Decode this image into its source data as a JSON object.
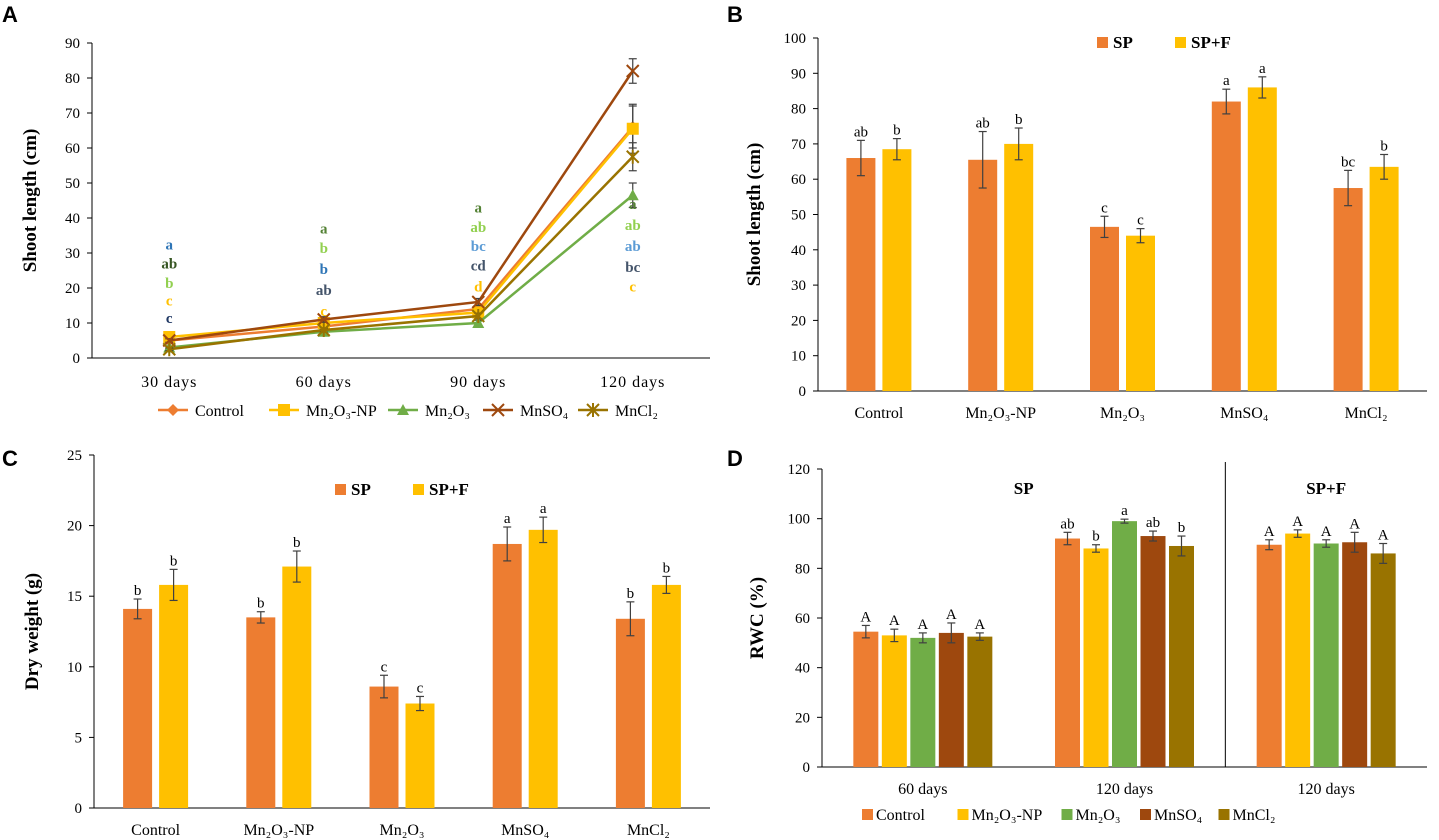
{
  "figure": {
    "colors": {
      "Control": "#ED7D31",
      "Mn2O3-NP": "#FFC000",
      "Mn2O3": "#70AD47",
      "MnSO4": "#9E480E",
      "MnCl2": "#997300",
      "SP": "#ED7D31",
      "SP+F": "#FFC000"
    }
  },
  "chart_data": [
    {
      "panel": "A",
      "type": "line",
      "ylabel": "Shoot length (cm)",
      "ylim": [
        0,
        90
      ],
      "yticks": [
        "0",
        "10",
        "20",
        "30",
        "40",
        "50",
        "60",
        "70",
        "80",
        "90"
      ],
      "categories": [
        "30 days",
        "60 days",
        "90 days",
        "120 days"
      ],
      "series": [
        {
          "key": "Control",
          "name": "Control",
          "color": "#ED7D31",
          "marker": "diamond",
          "values": [
            5,
            9,
            14,
            66
          ],
          "errors": [
            0.5,
            0.8,
            1,
            6
          ]
        },
        {
          "key": "Mn2O3-NP",
          "name": "Mn₂O₃-NP",
          "color": "#FFC000",
          "marker": "square",
          "values": [
            6,
            10,
            13,
            65.5
          ],
          "errors": [
            0.5,
            0.8,
            1,
            7
          ]
        },
        {
          "key": "Mn2O3",
          "name": "Mn₂O₃",
          "color": "#70AD47",
          "marker": "triangle",
          "values": [
            3,
            7.5,
            10,
            46.5
          ],
          "errors": [
            0.4,
            0.6,
            0.8,
            3.5
          ]
        },
        {
          "key": "MnSO4",
          "name": "MnSO₄",
          "color": "#9E480E",
          "marker": "x",
          "values": [
            5,
            11,
            16,
            82
          ],
          "errors": [
            0.5,
            0.8,
            1,
            3.5
          ]
        },
        {
          "key": "MnCl2",
          "name": "MnCl₂",
          "color": "#997300",
          "marker": "star",
          "values": [
            2.5,
            8,
            12,
            57.5
          ],
          "errors": [
            0.4,
            0.6,
            0.8,
            4
          ]
        }
      ],
      "letters": [
        {
          "x": "30 days",
          "items": [
            {
              "text": "a",
              "color": "#2E75B6",
              "y": 32.5
            },
            {
              "text": "ab",
              "color": "#375623",
              "y": 27
            },
            {
              "text": "b",
              "color": "#92D050",
              "y": 21.5
            },
            {
              "text": "c",
              "color": "#FFC000",
              "y": 16.5
            },
            {
              "text": "c",
              "color": "#203864",
              "y": 11.5
            }
          ]
        },
        {
          "x": "60 days",
          "items": [
            {
              "text": "a",
              "color": "#548235",
              "y": 37
            },
            {
              "text": "b",
              "color": "#92D050",
              "y": 31.5
            },
            {
              "text": "b",
              "color": "#2E75B6",
              "y": 25.5
            },
            {
              "text": "ab",
              "color": "#44546A",
              "y": 19.5
            },
            {
              "text": "c",
              "color": "#FFC000",
              "y": 13.5
            }
          ]
        },
        {
          "x": "90 days",
          "items": [
            {
              "text": "a",
              "color": "#548235",
              "y": 43
            },
            {
              "text": "ab",
              "color": "#92D050",
              "y": 37.5
            },
            {
              "text": "bc",
              "color": "#5B9BD5",
              "y": 32
            },
            {
              "text": "cd",
              "color": "#44546A",
              "y": 26.5
            },
            {
              "text": "d",
              "color": "#FFC000",
              "y": 20.5
            }
          ]
        },
        {
          "x": "120 days",
          "items": [
            {
              "text": "a",
              "color": "#548235",
              "y": 44
            },
            {
              "text": "ab",
              "color": "#92D050",
              "y": 38
            },
            {
              "text": "ab",
              "color": "#5B9BD5",
              "y": 32
            },
            {
              "text": "bc",
              "color": "#44546A",
              "y": 26
            },
            {
              "text": "c",
              "color": "#FFC000",
              "y": 20.5
            }
          ]
        }
      ],
      "legend_position": "bottom"
    },
    {
      "panel": "B",
      "type": "bar",
      "ylabel": "Shoot  length (cm)",
      "ylim": [
        0,
        100
      ],
      "yticks": [
        "0",
        "10",
        "20",
        "30",
        "40",
        "50",
        "60",
        "70",
        "80",
        "90",
        "100"
      ],
      "categories": [
        "Control",
        "Mn₂O₃-NP",
        "Mn₂O₃",
        "MnSO₄",
        "MnCl₂"
      ],
      "series": [
        {
          "key": "SP",
          "name": "SP",
          "color": "#ED7D31",
          "values": [
            66,
            65.5,
            46.5,
            82,
            57.5
          ],
          "errors": [
            5,
            8,
            3,
            3.5,
            5
          ],
          "letters": [
            "ab",
            "ab",
            "c",
            "a",
            "bc"
          ]
        },
        {
          "key": "SP+F",
          "name": "SP+F",
          "color": "#FFC000",
          "values": [
            68.5,
            70,
            44,
            86,
            63.5
          ],
          "errors": [
            3,
            4.5,
            2,
            3,
            3.5
          ],
          "letters": [
            "b",
            "b",
            "c",
            "a",
            "b"
          ]
        }
      ],
      "legend_position": "top"
    },
    {
      "panel": "C",
      "type": "bar",
      "ylabel": "Dry weight (g)",
      "ylim": [
        0,
        25
      ],
      "yticks": [
        "0",
        "5",
        "10",
        "15",
        "20",
        "25"
      ],
      "categories": [
        "Control",
        "Mn₂O₃-NP",
        "Mn₂O₃",
        "MnSO₄",
        "MnCl₂"
      ],
      "series": [
        {
          "key": "SP",
          "name": "SP",
          "color": "#ED7D31",
          "values": [
            14.1,
            13.5,
            8.6,
            18.7,
            13.4
          ],
          "errors": [
            0.7,
            0.4,
            0.8,
            1.2,
            1.2
          ],
          "letters": [
            "b",
            "b",
            "c",
            "a",
            "b"
          ]
        },
        {
          "key": "SP+F",
          "name": "SP+F",
          "color": "#FFC000",
          "values": [
            15.8,
            17.1,
            7.4,
            19.7,
            15.8
          ],
          "errors": [
            1.1,
            1.1,
            0.5,
            0.9,
            0.6
          ],
          "letters": [
            "b",
            "b",
            "c",
            "a",
            "b"
          ]
        }
      ],
      "legend_position": "top"
    },
    {
      "panel": "D",
      "type": "bar",
      "ylabel": "RWC (%)",
      "ylim": [
        0,
        120
      ],
      "yticks": [
        "0",
        "20",
        "40",
        "60",
        "80",
        "100",
        "120"
      ],
      "groups": [
        {
          "label": "60 days",
          "section": "SP",
          "values": [
            54.5,
            53,
            52,
            54,
            52.5
          ],
          "errors": [
            2.5,
            2.5,
            2,
            4,
            1.5
          ],
          "letters": [
            "A",
            "A",
            "A",
            "A",
            "A"
          ]
        },
        {
          "label": "120 days",
          "section": "SP",
          "values": [
            92,
            88,
            99,
            93,
            89
          ],
          "errors": [
            2.5,
            1.5,
            0.8,
            2,
            4
          ],
          "letters": [
            "ab",
            "b",
            "a",
            "ab",
            "b"
          ]
        },
        {
          "label": "120 days",
          "section": "SP+F",
          "values": [
            89.5,
            94,
            90,
            90.5,
            86
          ],
          "errors": [
            2,
            1.5,
            1.5,
            4,
            4
          ],
          "letters": [
            "A",
            "A",
            "A",
            "A",
            "A"
          ]
        }
      ],
      "sections": [
        "SP",
        "SP+F"
      ],
      "series": [
        {
          "key": "Control",
          "name": "Control",
          "color": "#ED7D31"
        },
        {
          "key": "Mn2O3-NP",
          "name": "Mn₂O₃-NP",
          "color": "#FFC000"
        },
        {
          "key": "Mn2O3",
          "name": "Mn₂O₃",
          "color": "#70AD47"
        },
        {
          "key": "MnSO4",
          "name": "MnSO₄",
          "color": "#9E480E"
        },
        {
          "key": "MnCl2",
          "name": "MnCl₂",
          "color": "#997300"
        }
      ],
      "legend_position": "bottom"
    }
  ]
}
